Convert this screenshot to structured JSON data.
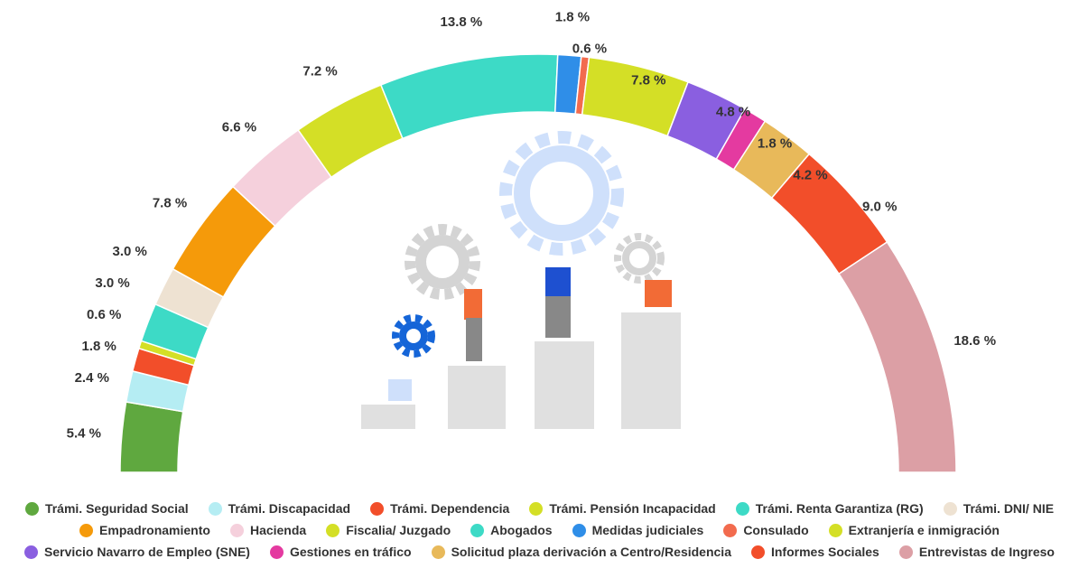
{
  "chart_data": {
    "type": "semi-donut",
    "categories": [
      "Trámi. Seguridad Social",
      "Trámi. Discapacidad",
      "Trámi. Dependencia",
      "Trámi. Pensión Incapacidad",
      "Trámi. Renta Garantiza (RG)",
      "Trámi. DNI/ NIE",
      "Empadronamiento",
      "Hacienda",
      "Fiscalia/ Juzgado",
      "Abogados",
      "Medidas judiciales",
      "Consulado",
      "Extranjería e inmigración",
      "Servicio Navarro de Empleo (SNE)",
      "Gestiones en tráfico",
      "Solicitud plaza derivación a Centro/Residencia",
      "Informes Sociales",
      "Entrevistas de Ingreso"
    ],
    "values": [
      5.4,
      2.4,
      1.8,
      0.6,
      3.0,
      3.0,
      7.8,
      6.6,
      7.2,
      13.8,
      1.8,
      0.6,
      7.8,
      4.8,
      1.8,
      4.2,
      9.0,
      18.6
    ],
    "value_labels": [
      "5.4 %",
      "2.4 %",
      "1.8 %",
      "0.6 %",
      "3.0 %",
      "3.0 %",
      "7.8 %",
      "6.6 %",
      "7.2 %",
      "13.8 %",
      "1.8 %",
      "0.6 %",
      "7.8 %",
      "4.8 %",
      "1.8 %",
      "4.2 %",
      "9.0 %",
      "18.6 %"
    ],
    "colors": [
      "#5fa83f",
      "#b5edf3",
      "#f24e2a",
      "#d4df26",
      "#3ddac6",
      "#eee2d2",
      "#f59a0a",
      "#f5d0dc",
      "#d4df26",
      "#3ddac6",
      "#2f8ee8",
      "#f26b4e",
      "#d4df26",
      "#8a5fe0",
      "#e43aa0",
      "#e8b95a",
      "#f24e2a",
      "#dc9fa5"
    ]
  }
}
